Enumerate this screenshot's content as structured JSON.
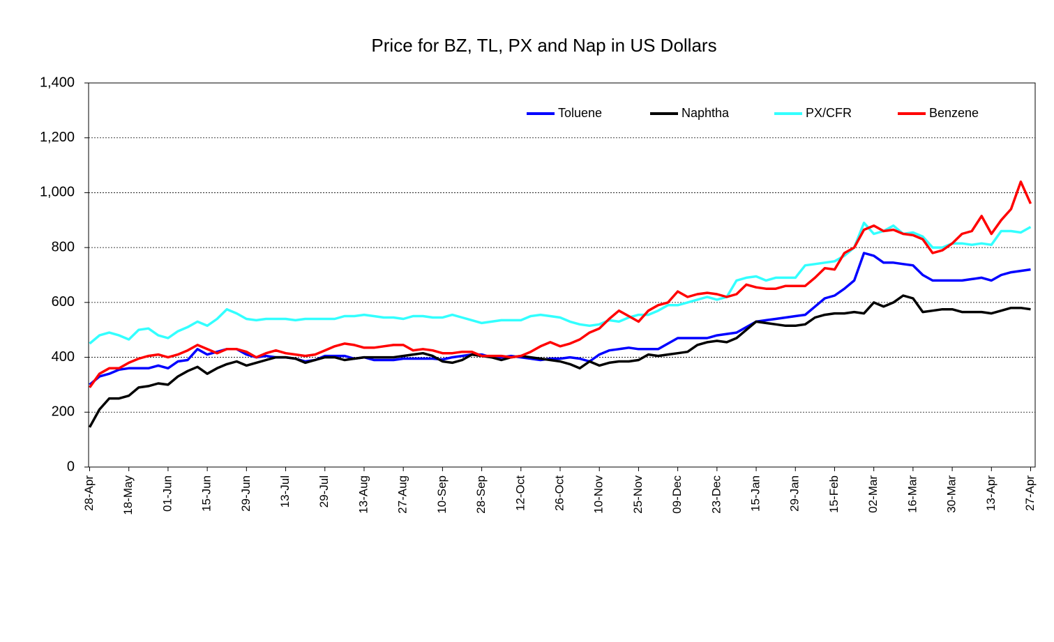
{
  "chart_data": {
    "type": "line",
    "title": "Price for BZ, TL, PX and Nap in US Dollars",
    "categories": [
      "28-Apr",
      null,
      null,
      null,
      "18-May",
      null,
      null,
      null,
      "01-Jun",
      null,
      null,
      null,
      "15-Jun",
      null,
      null,
      null,
      "29-Jun",
      null,
      null,
      null,
      "13-Jul",
      null,
      null,
      null,
      "29-Jul",
      null,
      null,
      null,
      "13-Aug",
      null,
      null,
      null,
      "27-Aug",
      null,
      null,
      null,
      "10-Sep",
      null,
      null,
      null,
      "28-Sep",
      null,
      null,
      null,
      "12-Oct",
      null,
      null,
      null,
      "26-Oct",
      null,
      null,
      null,
      "10-Nov",
      null,
      null,
      null,
      "25-Nov",
      null,
      null,
      null,
      "09-Dec",
      null,
      null,
      null,
      "23-Dec",
      null,
      null,
      null,
      "15-Jan",
      null,
      null,
      null,
      "29-Jan",
      null,
      null,
      null,
      "15-Feb",
      null,
      null,
      null,
      "02-Mar",
      null,
      null,
      null,
      "16-Mar",
      null,
      null,
      null,
      "30-Mar",
      null,
      null,
      null,
      "13-Apr",
      null,
      null,
      null,
      "27-Apr"
    ],
    "series": [
      {
        "name": "Toluene",
        "color": "#0000ff",
        "values": [
          300,
          330,
          340,
          355,
          360,
          360,
          360,
          370,
          360,
          385,
          390,
          430,
          410,
          420,
          430,
          430,
          410,
          400,
          405,
          400,
          400,
          395,
          385,
          390,
          405,
          405,
          405,
          395,
          400,
          390,
          390,
          390,
          395,
          395,
          395,
          395,
          392,
          400,
          405,
          410,
          410,
          400,
          400,
          405,
          400,
          395,
          390,
          395,
          395,
          400,
          395,
          385,
          410,
          425,
          430,
          435,
          430,
          430,
          430,
          450,
          470,
          470,
          470,
          470,
          480,
          485,
          490,
          510,
          530,
          535,
          540,
          545,
          550,
          555,
          585,
          615,
          625,
          650,
          680,
          780,
          770,
          745,
          745,
          740,
          735,
          700,
          680,
          680,
          680,
          680,
          685,
          690,
          680,
          700,
          710,
          715,
          720
        ]
      },
      {
        "name": "Naphtha",
        "color": "#000000",
        "values": [
          145,
          210,
          250,
          250,
          260,
          290,
          295,
          305,
          300,
          330,
          350,
          365,
          340,
          360,
          375,
          385,
          370,
          380,
          390,
          400,
          400,
          395,
          380,
          390,
          400,
          400,
          390,
          395,
          400,
          400,
          400,
          400,
          405,
          410,
          415,
          405,
          385,
          380,
          390,
          410,
          405,
          400,
          390,
          400,
          405,
          400,
          395,
          390,
          385,
          375,
          360,
          385,
          370,
          380,
          385,
          385,
          390,
          410,
          405,
          410,
          415,
          420,
          445,
          455,
          460,
          455,
          470,
          500,
          530,
          525,
          520,
          515,
          515,
          520,
          545,
          555,
          560,
          560,
          565,
          560,
          600,
          585,
          600,
          625,
          615,
          565,
          570,
          575,
          575,
          565,
          565,
          565,
          560,
          570,
          580,
          580,
          575
        ]
      },
      {
        "name": "PX/CFR",
        "color": "#33ffff",
        "values": [
          450,
          480,
          490,
          480,
          465,
          500,
          505,
          480,
          470,
          495,
          510,
          530,
          515,
          540,
          575,
          560,
          540,
          535,
          540,
          540,
          540,
          535,
          540,
          540,
          540,
          540,
          550,
          550,
          555,
          550,
          545,
          545,
          540,
          550,
          550,
          545,
          545,
          555,
          545,
          535,
          525,
          530,
          535,
          535,
          535,
          550,
          555,
          550,
          545,
          530,
          520,
          515,
          520,
          535,
          530,
          545,
          555,
          555,
          570,
          590,
          590,
          600,
          610,
          620,
          610,
          620,
          680,
          690,
          695,
          680,
          690,
          690,
          690,
          735,
          740,
          745,
          750,
          770,
          800,
          890,
          850,
          860,
          880,
          850,
          855,
          840,
          800,
          800,
          815,
          815,
          810,
          815,
          810,
          860,
          860,
          855,
          875
        ]
      },
      {
        "name": "Benzene",
        "color": "#ff0000",
        "values": [
          290,
          340,
          360,
          360,
          380,
          395,
          405,
          410,
          400,
          410,
          425,
          445,
          430,
          415,
          430,
          430,
          420,
          400,
          415,
          425,
          415,
          410,
          405,
          410,
          425,
          440,
          450,
          445,
          435,
          435,
          440,
          445,
          445,
          425,
          430,
          425,
          415,
          415,
          420,
          420,
          405,
          405,
          405,
          400,
          405,
          420,
          440,
          455,
          440,
          450,
          465,
          490,
          505,
          540,
          570,
          550,
          530,
          570,
          590,
          600,
          640,
          620,
          630,
          635,
          630,
          620,
          630,
          665,
          655,
          650,
          650,
          660,
          660,
          660,
          690,
          725,
          720,
          780,
          800,
          865,
          880,
          860,
          865,
          850,
          845,
          830,
          780,
          790,
          815,
          850,
          860,
          915,
          850,
          900,
          940,
          1040,
          960
        ]
      }
    ],
    "ylim": [
      0,
      1400
    ],
    "yticks": [
      {
        "value": 0,
        "label": "0"
      },
      {
        "value": 200,
        "label": "200"
      },
      {
        "value": 400,
        "label": "400"
      },
      {
        "value": 600,
        "label": "600"
      },
      {
        "value": 800,
        "label": "800"
      },
      {
        "value": 1000,
        "label": "1,000"
      },
      {
        "value": 1200,
        "label": "1,200"
      },
      {
        "value": 1400,
        "label": "1,400"
      }
    ],
    "grid": true,
    "legend": "top"
  }
}
